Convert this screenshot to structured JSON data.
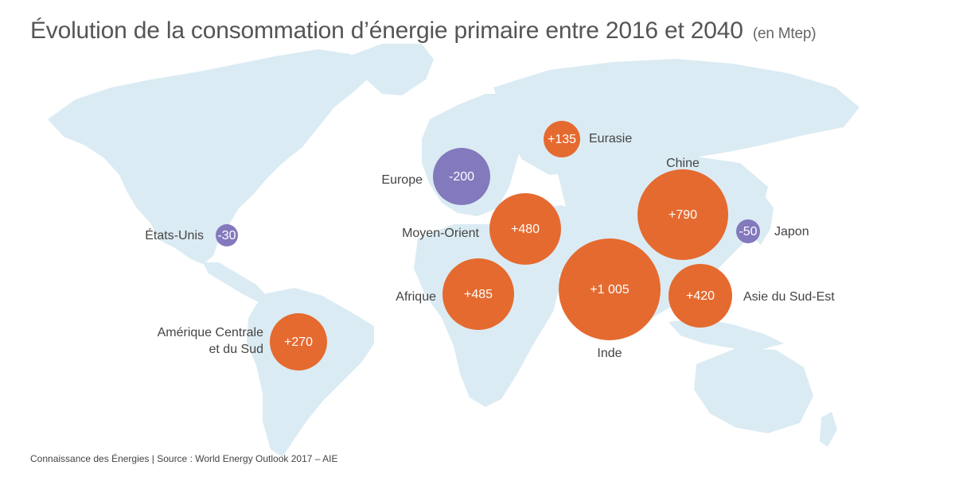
{
  "title": "Évolution de la consommation d’énergie primaire entre 2016 et 2040",
  "unit": "(en Mtep)",
  "source": "Connaissance des Énergies | Source : World Energy Outlook 2017 – AIE",
  "colors": {
    "increase": "#e56a2f",
    "decrease": "#8379bd",
    "land": "#dbebf3"
  },
  "regions": [
    {
      "id": "etats-unis",
      "name": "États-Unis",
      "value": "-30",
      "amount": -30
    },
    {
      "id": "amerique-centrale-sud",
      "name_lines": [
        "Amérique Centrale",
        "et du Sud"
      ],
      "value": "+270",
      "amount": 270
    },
    {
      "id": "europe",
      "name": "Europe",
      "value": "-200",
      "amount": -200
    },
    {
      "id": "eurasie",
      "name": "Eurasie",
      "value": "+135",
      "amount": 135
    },
    {
      "id": "moyen-orient",
      "name": "Moyen-Orient",
      "value": "+480",
      "amount": 480
    },
    {
      "id": "afrique",
      "name": "Afrique",
      "value": "+485",
      "amount": 485
    },
    {
      "id": "inde",
      "name": "Inde",
      "value": "+1 005",
      "amount": 1005
    },
    {
      "id": "chine",
      "name": "Chine",
      "value": "+790",
      "amount": 790
    },
    {
      "id": "japon",
      "name": "Japon",
      "value": "-50",
      "amount": -50
    },
    {
      "id": "asie-du-sud-est",
      "name": "Asie du Sud-Est",
      "value": "+420",
      "amount": 420
    }
  ]
}
